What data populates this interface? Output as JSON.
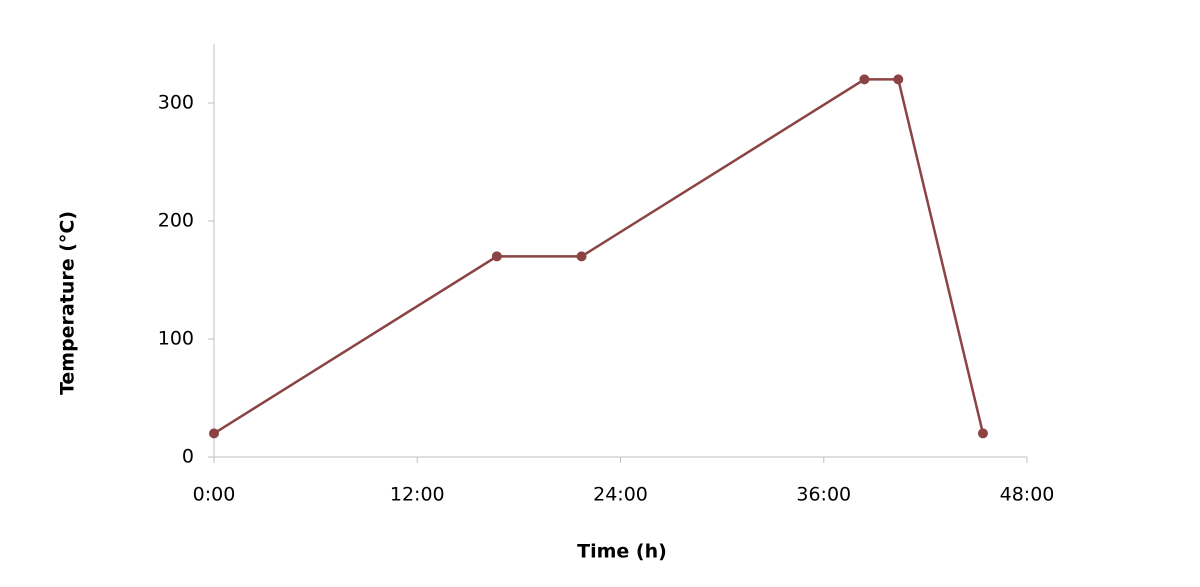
{
  "chart_data": {
    "type": "line",
    "x_label": "Time (h)",
    "y_label": "Temperature (°C)",
    "x": [
      0,
      16.7,
      21.7,
      38.4,
      40.4,
      45.4
    ],
    "series": [
      {
        "color": "#8b4443",
        "values": [
          20,
          170,
          170,
          320,
          320,
          20
        ]
      }
    ],
    "xlim": [
      0,
      48
    ],
    "xticks": [
      {
        "value": 0,
        "label": "0:00"
      },
      {
        "value": 12,
        "label": "12:00"
      },
      {
        "value": 24,
        "label": "24:00"
      },
      {
        "value": 36,
        "label": "36:00"
      },
      {
        "value": 48,
        "label": "48:00"
      }
    ],
    "ylim": [
      0,
      350
    ],
    "yticks": [
      0,
      100,
      200,
      300
    ],
    "grid": false,
    "markers": true
  }
}
